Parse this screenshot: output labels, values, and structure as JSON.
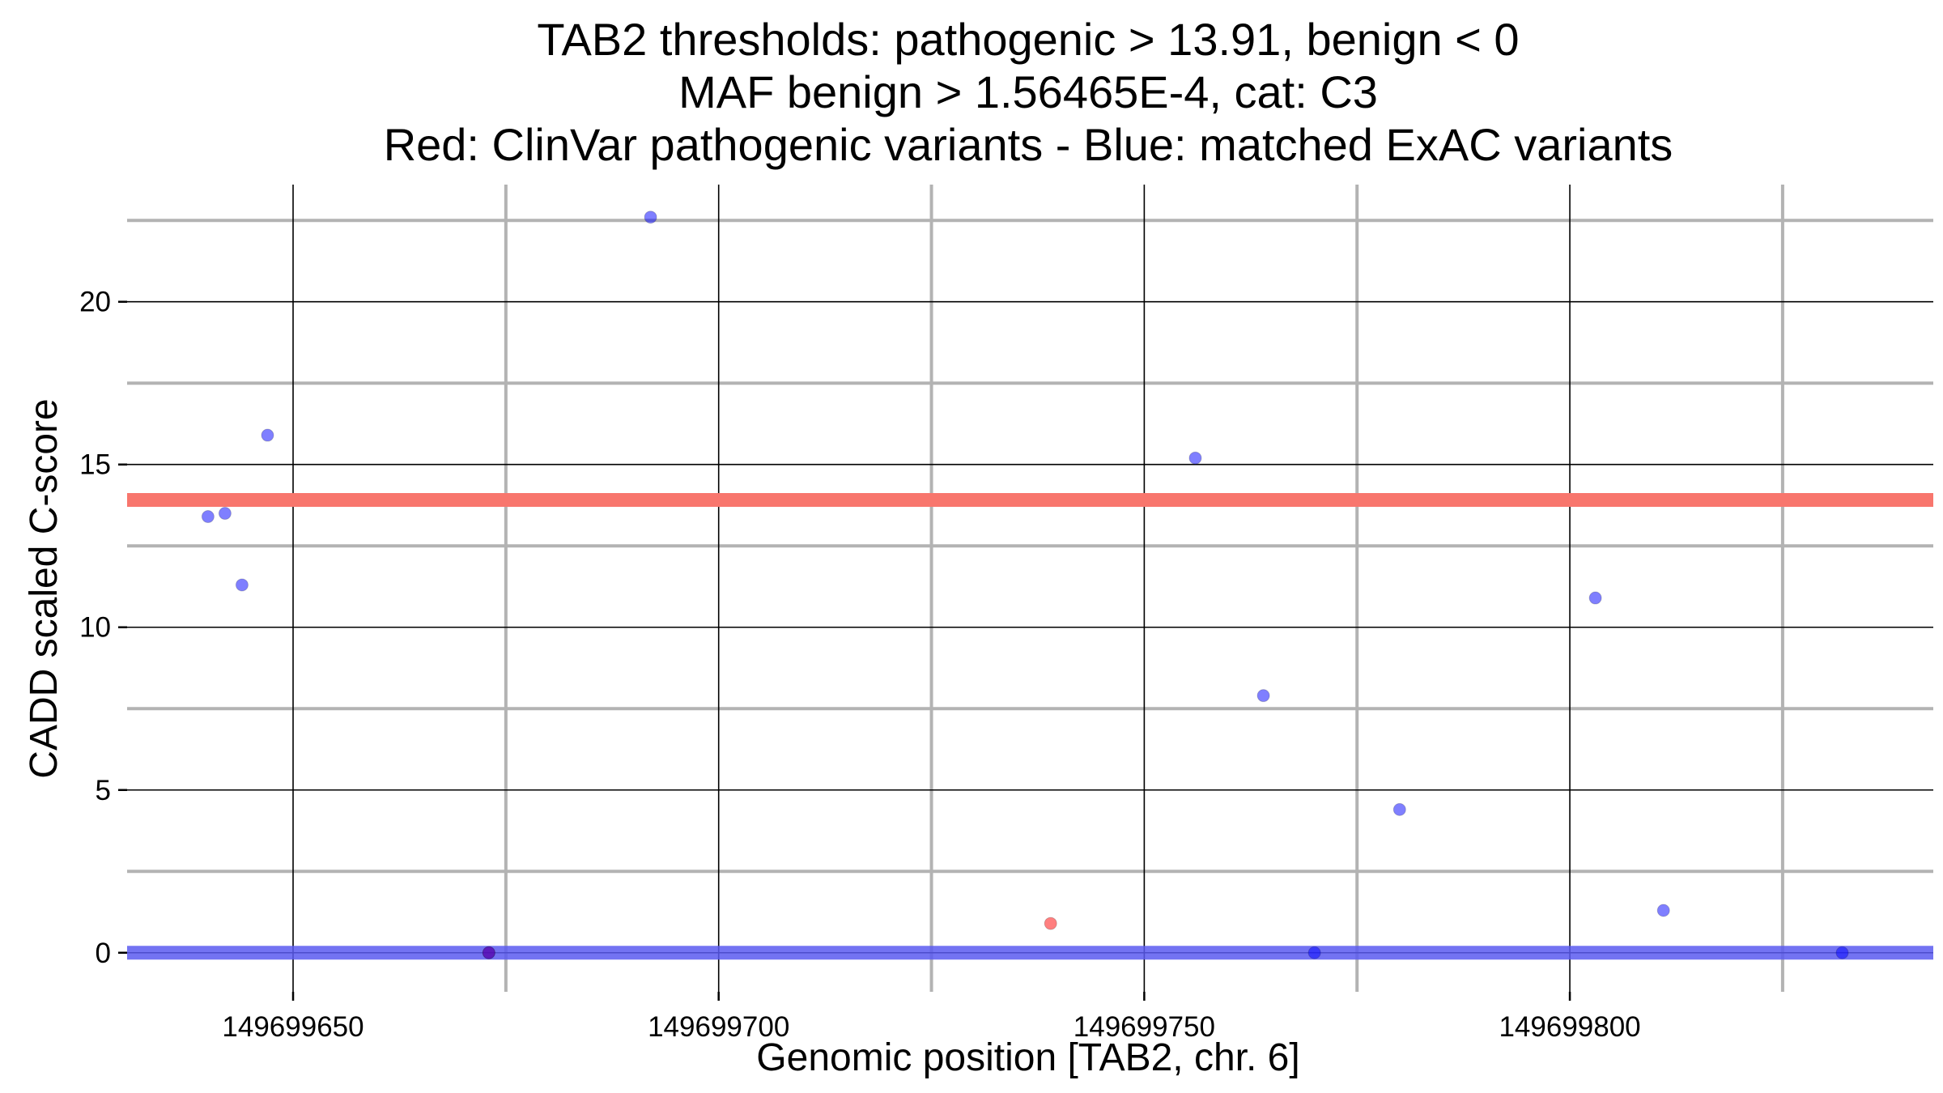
{
  "chart_data": {
    "type": "scatter",
    "title_lines": [
      "TAB2 thresholds: pathogenic > 13.91, benign < 0",
      "MAF benign > 1.56465E-4, cat: C3",
      "Red: ClinVar pathogenic variants - Blue: matched ExAC variants"
    ],
    "xlabel": "Genomic position [TAB2, chr. 6]",
    "ylabel": "CADD scaled C-score",
    "xlim": [
      149699630.5,
      149699842.7
    ],
    "ylim": [
      -1.2,
      23.6
    ],
    "x_ticks": [
      {
        "value": 149699650,
        "label": "149699650"
      },
      {
        "value": 149699700,
        "label": "149699700"
      },
      {
        "value": 149699750,
        "label": "149699750"
      },
      {
        "value": 149699800,
        "label": "149699800"
      }
    ],
    "y_ticks": [
      {
        "value": 0,
        "label": "0"
      },
      {
        "value": 5,
        "label": "5"
      },
      {
        "value": 10,
        "label": "10"
      },
      {
        "value": 15,
        "label": "15"
      },
      {
        "value": 20,
        "label": "20"
      }
    ],
    "x_minor_grid": [
      149699675,
      149699725,
      149699775,
      149699825
    ],
    "y_minor_grid": [
      2.5,
      7.5,
      12.5,
      17.5,
      22.5
    ],
    "thresholds": [
      {
        "name": "pathogenic",
        "value": 13.91,
        "color": "#F8766D"
      },
      {
        "name": "benign",
        "value": 0,
        "color": "#5B5BF0"
      }
    ],
    "series": [
      {
        "name": "ClinVar pathogenic variants",
        "color": "#FF0000",
        "points": [
          {
            "x": 149699673,
            "y": 0
          },
          {
            "x": 149699739,
            "y": 0.9
          }
        ]
      },
      {
        "name": "matched ExAC variants",
        "color": "#0000FF",
        "points": [
          {
            "x": 149699640,
            "y": 13.4
          },
          {
            "x": 149699642,
            "y": 13.5
          },
          {
            "x": 149699644,
            "y": 11.3
          },
          {
            "x": 149699647,
            "y": 15.9
          },
          {
            "x": 149699673,
            "y": 0
          },
          {
            "x": 149699692,
            "y": 22.6
          },
          {
            "x": 149699756,
            "y": 15.2
          },
          {
            "x": 149699764,
            "y": 7.9
          },
          {
            "x": 149699770,
            "y": 0
          },
          {
            "x": 149699780,
            "y": 4.4
          },
          {
            "x": 149699803,
            "y": 10.9
          },
          {
            "x": 149699811,
            "y": 1.3
          },
          {
            "x": 149699832,
            "y": 0
          }
        ]
      }
    ]
  }
}
